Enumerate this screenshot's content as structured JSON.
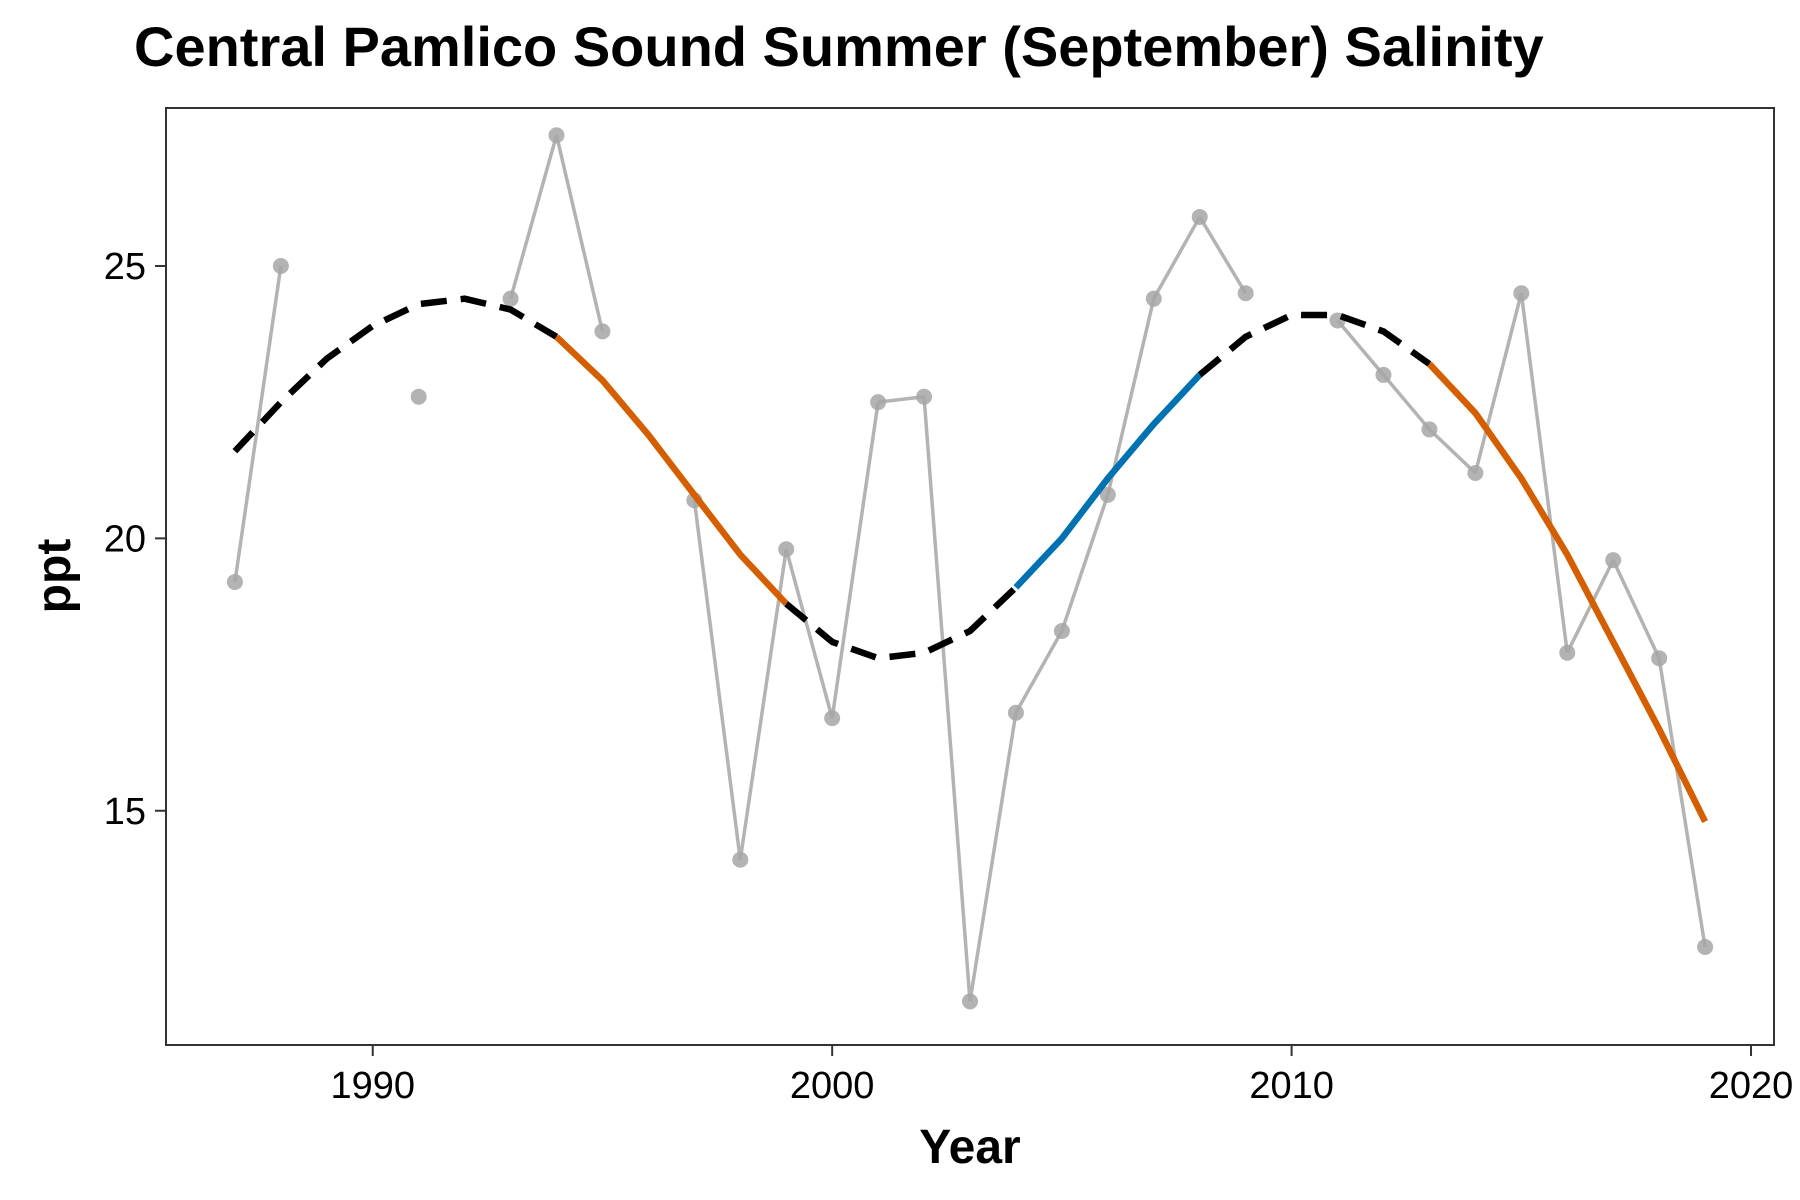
{
  "chart_data": {
    "type": "line",
    "title": "Central Pamlico Sound Summer (September) Salinity",
    "xlabel": "Year",
    "ylabel": "ppt",
    "xlim": [
      1985.5,
      2020.5
    ],
    "ylim": [
      10.7,
      27.9
    ],
    "xticks": [
      1990,
      2000,
      2010,
      2020
    ],
    "yticks": [
      15,
      20,
      25
    ],
    "grid": false,
    "legend": "none",
    "colors": {
      "observed": "#b3b3b3",
      "trend_stable": "#000000",
      "trend_decreasing": "#d55e00",
      "trend_increasing": "#0072b2"
    },
    "observed": [
      {
        "x": 1987,
        "y": 19.2
      },
      {
        "x": 1988,
        "y": 25.0
      },
      {
        "x": 1991,
        "y": 22.6
      },
      {
        "x": 1993,
        "y": 24.4
      },
      {
        "x": 1994,
        "y": 27.4
      },
      {
        "x": 1995,
        "y": 23.8
      },
      {
        "x": 1997,
        "y": 20.7
      },
      {
        "x": 1998,
        "y": 14.1
      },
      {
        "x": 1999,
        "y": 19.8
      },
      {
        "x": 2000,
        "y": 16.7
      },
      {
        "x": 2001,
        "y": 22.5
      },
      {
        "x": 2002,
        "y": 22.6
      },
      {
        "x": 2003,
        "y": 11.5
      },
      {
        "x": 2004,
        "y": 16.8
      },
      {
        "x": 2005,
        "y": 18.3
      },
      {
        "x": 2006,
        "y": 20.8
      },
      {
        "x": 2007,
        "y": 24.4
      },
      {
        "x": 2008,
        "y": 25.9
      },
      {
        "x": 2009,
        "y": 24.5
      },
      {
        "x": 2011,
        "y": 24.0
      },
      {
        "x": 2012,
        "y": 23.0
      },
      {
        "x": 2013,
        "y": 22.0
      },
      {
        "x": 2014,
        "y": 21.2
      },
      {
        "x": 2015,
        "y": 24.5
      },
      {
        "x": 2016,
        "y": 17.9
      },
      {
        "x": 2017,
        "y": 19.6
      },
      {
        "x": 2018,
        "y": 17.8
      },
      {
        "x": 2019,
        "y": 12.5
      }
    ],
    "trend": [
      {
        "x": 1987,
        "y": 21.6
      },
      {
        "x": 1988,
        "y": 22.5
      },
      {
        "x": 1989,
        "y": 23.3
      },
      {
        "x": 1990,
        "y": 23.9
      },
      {
        "x": 1991,
        "y": 24.3
      },
      {
        "x": 1992,
        "y": 24.4
      },
      {
        "x": 1993,
        "y": 24.2
      },
      {
        "x": 1994,
        "y": 23.7
      },
      {
        "x": 1995,
        "y": 22.9
      },
      {
        "x": 1996,
        "y": 21.9
      },
      {
        "x": 1997,
        "y": 20.8
      },
      {
        "x": 1998,
        "y": 19.7
      },
      {
        "x": 1999,
        "y": 18.8
      },
      {
        "x": 2000,
        "y": 18.1
      },
      {
        "x": 2001,
        "y": 17.8
      },
      {
        "x": 2002,
        "y": 17.9
      },
      {
        "x": 2003,
        "y": 18.3
      },
      {
        "x": 2004,
        "y": 19.1
      },
      {
        "x": 2005,
        "y": 20.0
      },
      {
        "x": 2006,
        "y": 21.1
      },
      {
        "x": 2007,
        "y": 22.1
      },
      {
        "x": 2008,
        "y": 23.0
      },
      {
        "x": 2009,
        "y": 23.7
      },
      {
        "x": 2010,
        "y": 24.1
      },
      {
        "x": 2011,
        "y": 24.1
      },
      {
        "x": 2012,
        "y": 23.8
      },
      {
        "x": 2013,
        "y": 23.2
      },
      {
        "x": 2014,
        "y": 22.3
      },
      {
        "x": 2015,
        "y": 21.1
      },
      {
        "x": 2016,
        "y": 19.7
      },
      {
        "x": 2017,
        "y": 18.1
      },
      {
        "x": 2018,
        "y": 16.5
      },
      {
        "x": 2019,
        "y": 14.8
      }
    ],
    "trend_segments": [
      {
        "status": "stable",
        "x": [
          1987,
          1994
        ]
      },
      {
        "status": "decreasing",
        "x": [
          1994,
          1999
        ]
      },
      {
        "status": "stable",
        "x": [
          1999,
          2004
        ]
      },
      {
        "status": "increasing",
        "x": [
          2004,
          2008
        ]
      },
      {
        "status": "stable",
        "x": [
          2008,
          2013
        ]
      },
      {
        "status": "decreasing",
        "x": [
          2013,
          2019
        ]
      }
    ]
  }
}
